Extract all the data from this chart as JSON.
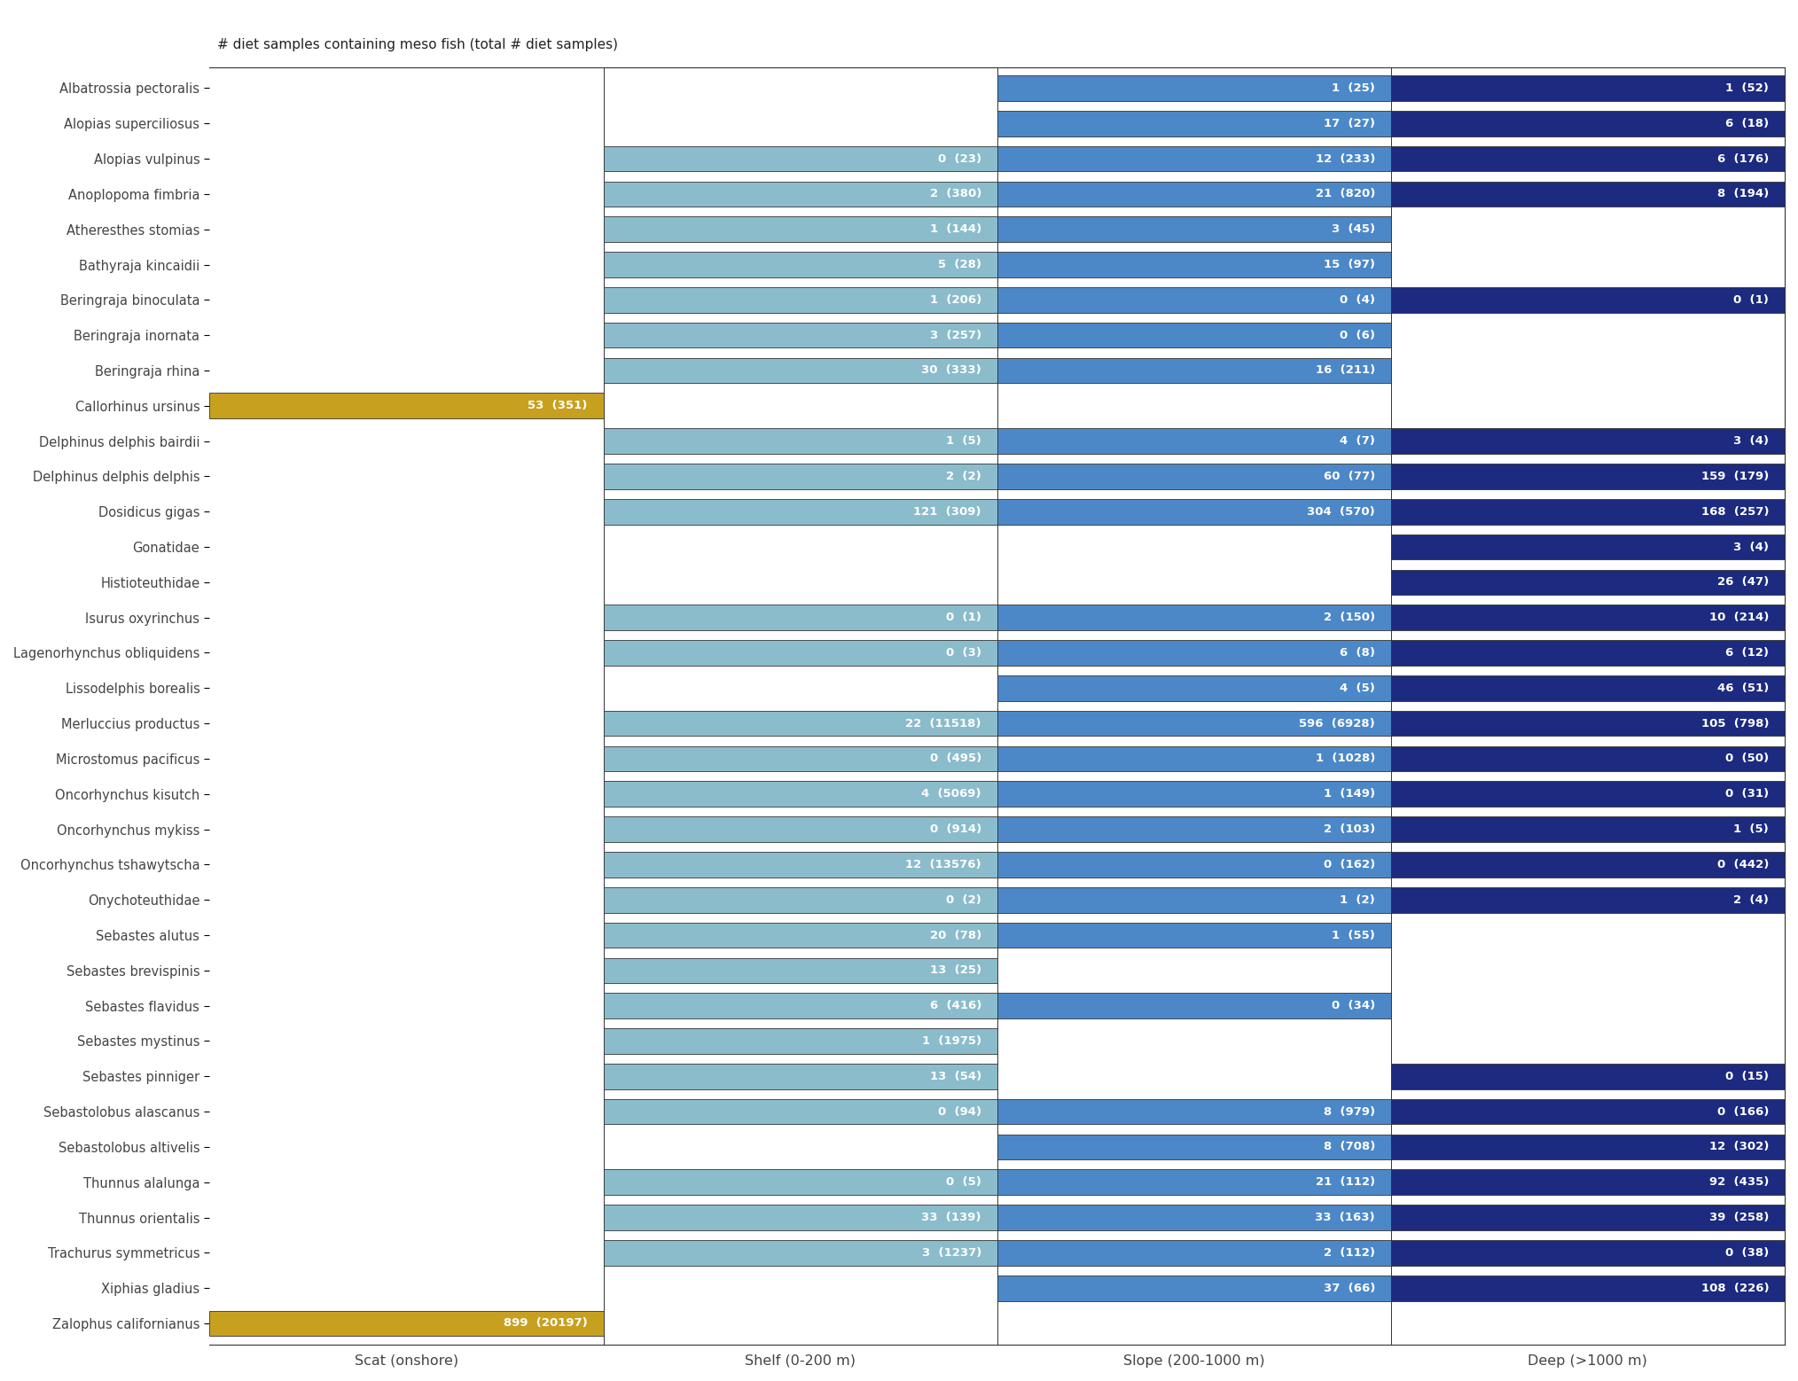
{
  "title": "# diet samples containing meso fish (total # diet samples)",
  "species": [
    "Albatrossia pectoralis",
    "Alopias superciliosus",
    "Alopias vulpinus",
    "Anoplopoma fimbria",
    "Atheresthes stomias",
    "Bathyraja kincaidii",
    "Beringraja binoculata",
    "Beringraja inornata",
    "Beringraja rhina",
    "Callorhinus ursinus",
    "Delphinus delphis bairdii",
    "Delphinus delphis delphis",
    "Dosidicus gigas",
    "Gonatidae",
    "Histioteuthidae",
    "Isurus oxyrinchus",
    "Lagenorhynchus obliquidens",
    "Lissodelphis borealis",
    "Merluccius productus",
    "Microstomus pacificus",
    "Oncorhynchus kisutch",
    "Oncorhynchus mykiss",
    "Oncorhynchus tshawytscha",
    "Onychoteuthidae",
    "Sebastes alutus",
    "Sebastes brevispinis",
    "Sebastes flavidus",
    "Sebastes mystinus",
    "Sebastes pinniger",
    "Sebastolobus alascanus",
    "Sebastolobus altivelis",
    "Thunnus alalunga",
    "Thunnus orientalis",
    "Trachurus symmetricus",
    "Xiphias gladius",
    "Zalophus californianus"
  ],
  "scat": {
    "meso": [
      null,
      null,
      null,
      null,
      null,
      null,
      null,
      null,
      null,
      53,
      null,
      null,
      null,
      null,
      null,
      null,
      null,
      null,
      null,
      null,
      null,
      null,
      null,
      null,
      null,
      null,
      null,
      null,
      null,
      null,
      null,
      null,
      null,
      null,
      null,
      899
    ],
    "total": [
      null,
      null,
      null,
      null,
      null,
      null,
      null,
      null,
      null,
      351,
      null,
      null,
      null,
      null,
      null,
      null,
      null,
      null,
      null,
      null,
      null,
      null,
      null,
      null,
      null,
      null,
      null,
      null,
      null,
      null,
      null,
      null,
      null,
      null,
      null,
      20197
    ]
  },
  "shelf": {
    "meso": [
      null,
      null,
      0,
      2,
      1,
      5,
      1,
      3,
      30,
      null,
      1,
      2,
      121,
      null,
      null,
      0,
      0,
      null,
      22,
      0,
      4,
      0,
      12,
      0,
      20,
      13,
      6,
      1,
      13,
      0,
      null,
      0,
      33,
      3,
      null,
      null
    ],
    "total": [
      null,
      null,
      23,
      380,
      144,
      28,
      206,
      257,
      333,
      null,
      5,
      2,
      309,
      null,
      null,
      1,
      3,
      null,
      11518,
      495,
      5069,
      914,
      13576,
      2,
      78,
      25,
      416,
      1975,
      54,
      94,
      null,
      5,
      139,
      1237,
      null,
      null
    ]
  },
  "slope": {
    "meso": [
      1,
      17,
      12,
      21,
      3,
      15,
      0,
      0,
      16,
      null,
      4,
      60,
      304,
      null,
      null,
      2,
      6,
      4,
      596,
      1,
      1,
      2,
      0,
      1,
      1,
      null,
      0,
      null,
      null,
      8,
      8,
      21,
      33,
      2,
      37,
      null
    ],
    "total": [
      25,
      27,
      233,
      820,
      45,
      97,
      4,
      6,
      211,
      null,
      7,
      77,
      570,
      null,
      null,
      150,
      8,
      5,
      6928,
      1028,
      149,
      103,
      162,
      2,
      55,
      null,
      34,
      null,
      null,
      979,
      708,
      112,
      163,
      112,
      66,
      null
    ]
  },
  "deep": {
    "meso": [
      1,
      6,
      6,
      8,
      null,
      null,
      0,
      null,
      null,
      null,
      3,
      159,
      168,
      3,
      26,
      10,
      6,
      46,
      105,
      0,
      0,
      1,
      0,
      2,
      null,
      null,
      null,
      null,
      0,
      0,
      12,
      92,
      39,
      0,
      108,
      null
    ],
    "total": [
      52,
      18,
      176,
      194,
      null,
      null,
      1,
      null,
      null,
      null,
      4,
      179,
      257,
      4,
      47,
      214,
      12,
      51,
      798,
      50,
      31,
      5,
      442,
      4,
      null,
      null,
      null,
      null,
      15,
      166,
      302,
      435,
      258,
      38,
      226,
      null
    ]
  },
  "colors": {
    "scat": "#C8A020",
    "shelf": "#8BBCCC",
    "slope": "#4C88C8",
    "deep": "#1C2A80"
  },
  "xlabel_labels": [
    "Scat (onshore)",
    "Shelf (0-200 m)",
    "Slope (200-1000 m)",
    "Deep (>1000 m)"
  ],
  "background_color": "#ffffff",
  "bar_height": 0.72
}
